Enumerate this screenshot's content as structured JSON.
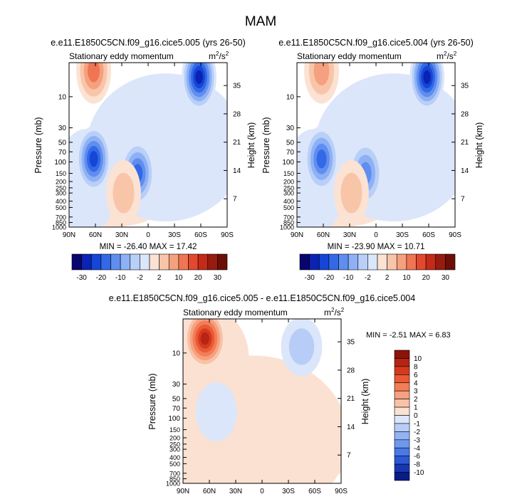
{
  "figure_title": "MAM",
  "panel_top_left": {
    "case_title": "e.e11.E1850C5CN.f09_g16.cice5.005 (yrs 26-50)",
    "variable_label": "Stationary eddy momentum",
    "units_prefix": "m",
    "units_exp1": "2",
    "units_mid": "/s",
    "units_exp2": "2",
    "stats": "MIN = -26.40  MAX = 17.42"
  },
  "panel_top_right": {
    "case_title": "e.e11.E1850C5CN.f09_g16.cice5.004 (yrs 26-50)",
    "variable_label": "Stationary eddy momentum",
    "units_prefix": "m",
    "units_exp1": "2",
    "units_mid": "/s",
    "units_exp2": "2",
    "stats": "MIN = -23.90  MAX = 10.71"
  },
  "panel_bottom": {
    "case_title": "e.e11.E1850C5CN.f09_g16.cice5.005 - e.e11.E1850C5CN.f09_g16.cice5.004",
    "variable_label": "Stationary eddy momentum",
    "units_prefix": "m",
    "units_exp1": "2",
    "units_mid": "/s",
    "units_exp2": "2",
    "stats": "MIN =  -2.51  MAX =   6.83"
  },
  "chart_data": {
    "type": "heatmap",
    "subtype": "filled contour (latitude-pressure cross section)",
    "x_axis": {
      "ticks": [
        "90N",
        "60N",
        "30N",
        "0",
        "30S",
        "60S",
        "90S"
      ],
      "tick_values": [
        90,
        60,
        30,
        0,
        -30,
        -60,
        -90
      ],
      "range": [
        90,
        -90
      ]
    },
    "y_axis_left": {
      "label": "Pressure (mb)",
      "ticks": [
        "10",
        "30",
        "50",
        "70",
        "100",
        "150",
        "200",
        "250",
        "300",
        "400",
        "500",
        "700",
        "850",
        "1000"
      ],
      "tick_values": [
        10,
        30,
        50,
        70,
        100,
        150,
        200,
        250,
        300,
        400,
        500,
        700,
        850,
        1000
      ],
      "range": [
        1000,
        3
      ],
      "scale": "log"
    },
    "y_axis_right": {
      "label": "Height (km)",
      "ticks": [
        "7",
        "14",
        "21",
        "28",
        "35"
      ],
      "tick_values": [
        7,
        14,
        21,
        28,
        35
      ]
    },
    "colorbar_main": {
      "orientation": "horizontal",
      "labels": [
        "-30",
        "-20",
        "-10",
        "-2",
        "2",
        "10",
        "20",
        "30"
      ],
      "colors": [
        "#08056e",
        "#0a23b4",
        "#1546d6",
        "#3369e6",
        "#5f8eef",
        "#8eb1f5",
        "#b8cff8",
        "#dbe6fb",
        "#fbe2d3",
        "#f9c5a8",
        "#f5a07f",
        "#ef7553",
        "#e2492e",
        "#c42a1a",
        "#971b0e",
        "#6b0f06"
      ]
    },
    "colorbar_diff": {
      "orientation": "vertical",
      "labels": [
        "10",
        "8",
        "6",
        "4",
        "3",
        "2",
        "1",
        "0",
        "-1",
        "-2",
        "-3",
        "-4",
        "-6",
        "-8",
        "-10"
      ],
      "colors": [
        "#8c1408",
        "#b72414",
        "#d63a1e",
        "#ea5a35",
        "#f27d58",
        "#f6a07e",
        "#f8c2a6",
        "#fbe1d2",
        "#dbe6fb",
        "#b7cdf7",
        "#93b3f3",
        "#6e97ee",
        "#4a79e6",
        "#2a58d6",
        "#1636b4",
        "#0a1c86"
      ]
    },
    "panels": [
      {
        "id": "005",
        "min": -26.4,
        "max": 17.42,
        "features": [
          {
            "lat": 62,
            "p": 4,
            "value": 14,
            "sign": "positive",
            "desc": "stratospheric maximum"
          },
          {
            "lat": -58,
            "p": 5,
            "value": -26,
            "sign": "negative",
            "desc": "southern stratospheric minimum"
          },
          {
            "lat": 62,
            "p": 90,
            "value": -20,
            "sign": "negative",
            "desc": "lower stratosphere NH minimum"
          },
          {
            "lat": 12,
            "p": 150,
            "value": -16,
            "sign": "negative",
            "desc": "tropical minimum"
          },
          {
            "lat": 28,
            "p": 300,
            "value": 8,
            "sign": "positive",
            "desc": "subtropical maximum"
          }
        ]
      },
      {
        "id": "004",
        "min": -23.9,
        "max": 10.71,
        "features": [
          {
            "lat": 62,
            "p": 4,
            "value": 9,
            "sign": "positive",
            "desc": "stratospheric maximum"
          },
          {
            "lat": -58,
            "p": 5,
            "value": -23,
            "sign": "negative",
            "desc": "southern stratospheric minimum"
          },
          {
            "lat": 62,
            "p": 90,
            "value": -16,
            "sign": "negative",
            "desc": "lower stratosphere NH minimum"
          },
          {
            "lat": 12,
            "p": 150,
            "value": -14,
            "sign": "negative",
            "desc": "tropical minimum"
          },
          {
            "lat": 28,
            "p": 300,
            "value": 6,
            "sign": "positive",
            "desc": "subtropical maximum"
          }
        ]
      },
      {
        "id": "diff",
        "min": -2.51,
        "max": 6.83,
        "features": [
          {
            "lat": 65,
            "p": 6,
            "value": 6.5,
            "sign": "positive",
            "desc": "NH high-latitude stratospheric maximum"
          },
          {
            "lat": -45,
            "p": 8,
            "value": -1.5,
            "sign": "negative",
            "desc": "southern stratospheric minimum"
          },
          {
            "lat": 52,
            "p": 80,
            "value": -1.2,
            "sign": "negative",
            "desc": "weak NH minimum"
          },
          {
            "lat": -75,
            "p": 300,
            "value": 1.2,
            "sign": "positive",
            "desc": "weak SH maximum"
          }
        ]
      }
    ]
  }
}
